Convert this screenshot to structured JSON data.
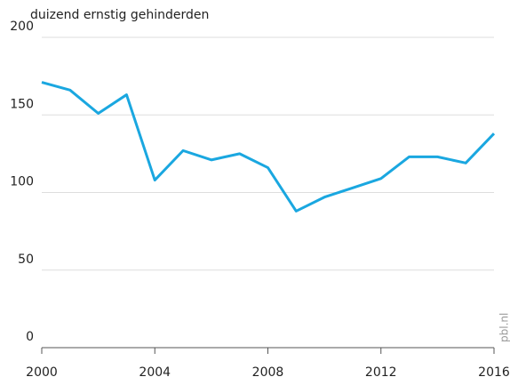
{
  "chart_data": {
    "type": "line",
    "y_label": "duizend ernstig gehinderden",
    "source": "pbl.nl",
    "x": [
      2000,
      2001,
      2002,
      2003,
      2004,
      2005,
      2006,
      2007,
      2008,
      2009,
      2010,
      2011,
      2012,
      2013,
      2014,
      2015,
      2016
    ],
    "series": [
      {
        "color": "#1aa7e0",
        "values": [
          171,
          166,
          151,
          163,
          108,
          127,
          121,
          125,
          116,
          88,
          97,
          103,
          109,
          123,
          123,
          119,
          138
        ]
      }
    ],
    "xlim": [
      2000,
      2016
    ],
    "xticks": [
      2000,
      2004,
      2008,
      2012,
      2016
    ],
    "ylim": [
      0,
      200
    ],
    "yticks": [
      0,
      50,
      100,
      150,
      200
    ],
    "grid": true
  }
}
